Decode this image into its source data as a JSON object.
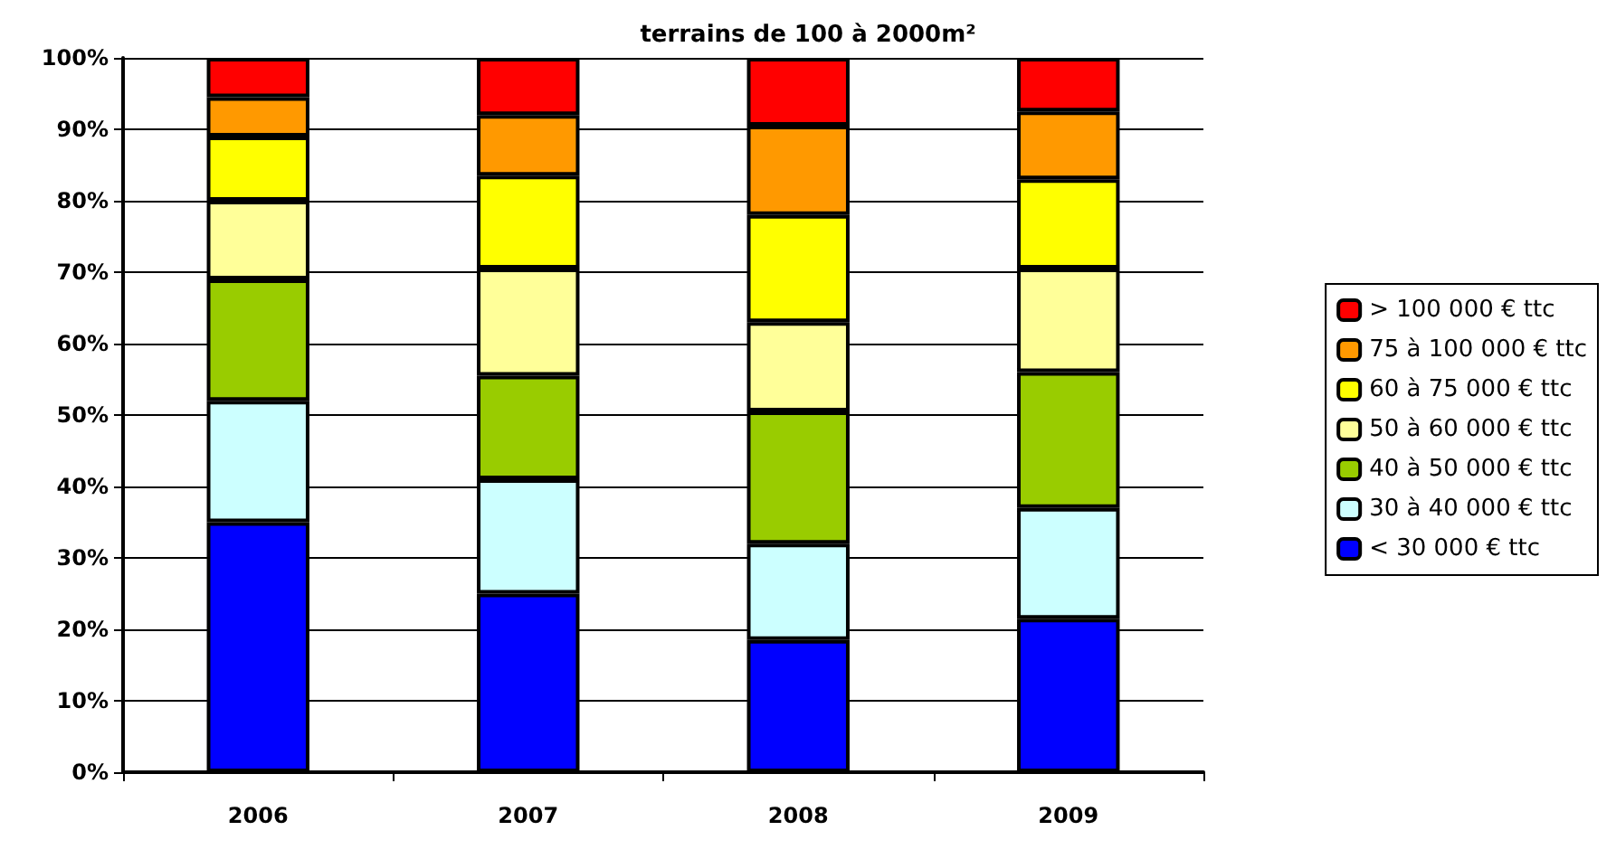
{
  "chart_data": {
    "type": "bar",
    "title": "terrains de 100 à 2000m²",
    "stacked": true,
    "categories": [
      "2006",
      "2007",
      "2008",
      "2009"
    ],
    "series": [
      {
        "name": "< 30 000 € ttc",
        "color": "#0000ff",
        "values": [
          35,
          25,
          18.5,
          21.5
        ]
      },
      {
        "name": "30 à 40 000 € ttc",
        "color": "#ccffff",
        "values": [
          17,
          16,
          13.5,
          15.5
        ]
      },
      {
        "name": "40 à 50 000 € ttc",
        "color": "#99cc00",
        "values": [
          17,
          14.5,
          18.5,
          19
        ]
      },
      {
        "name": "50 à 60 000 € ttc",
        "color": "#ffff99",
        "values": [
          11,
          15,
          12.5,
          14.5
        ]
      },
      {
        "name": "60 à 75 000 € ttc",
        "color": "#ffff00",
        "values": [
          9,
          13,
          15,
          12.5
        ]
      },
      {
        "name": "75 à 100 000 € ttc",
        "color": "#ff9900",
        "values": [
          5.5,
          8.5,
          12.5,
          9.5
        ]
      },
      {
        "name": "> 100 000 € ttc",
        "color": "#ff0000",
        "values": [
          5.5,
          8,
          9.5,
          7.5
        ]
      }
    ],
    "ylim": [
      0,
      100
    ],
    "yticks": [
      {
        "value": 0,
        "label": "0%"
      },
      {
        "value": 10,
        "label": "10%"
      },
      {
        "value": 20,
        "label": "20%"
      },
      {
        "value": 30,
        "label": "30%"
      },
      {
        "value": 40,
        "label": "40%"
      },
      {
        "value": 50,
        "label": "50%"
      },
      {
        "value": 60,
        "label": "60%"
      },
      {
        "value": 70,
        "label": "70%"
      },
      {
        "value": 80,
        "label": "80%"
      },
      {
        "value": 90,
        "label": "90%"
      },
      {
        "value": 100,
        "label": "100%"
      }
    ],
    "grid": true,
    "legend": "right"
  }
}
